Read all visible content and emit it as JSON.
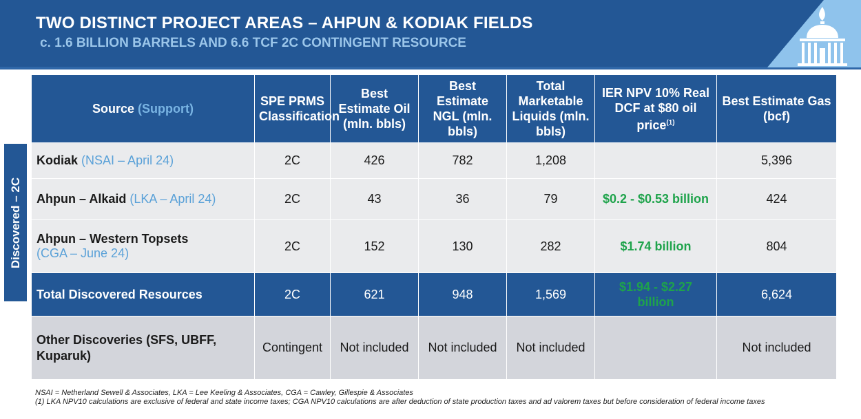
{
  "header": {
    "title": "TWO DISTINCT PROJECT AREAS – AHPUN & KODIAK FIELDS",
    "subtitle": "c. 1.6 BILLION BARRELS AND 6.6 TCF 2C CONTINGENT RESOURCE"
  },
  "side_label": "Discovered – 2C",
  "columns": {
    "source": "Source ",
    "source_sub": "(Support)",
    "spe": "SPE PRMS Classification",
    "oil": "Best Estimate Oil (mln. bbls)",
    "ngl": "Best Estimate NGL (mln. bbls)",
    "liquids": "Total Marketable Liquids (mln. bbls)",
    "npv": "IER NPV 10% Real DCF at $80 oil price",
    "npv_sup": "(1)",
    "gas": "Best Estimate Gas (bcf)"
  },
  "rows": [
    {
      "name": "Kodiak",
      "source": "(NSAI – April 24)",
      "spe": "2C",
      "oil": "426",
      "ngl": "782",
      "liquids": "1,208",
      "npv": "",
      "gas": "5,396"
    },
    {
      "name": "Ahpun – Alkaid",
      "source": "(LKA – April 24)",
      "spe": "2C",
      "oil": "43",
      "ngl": "36",
      "liquids": "79",
      "npv": "$0.2 - $0.53 billion",
      "gas": "424"
    },
    {
      "name": "Ahpun – Western Topsets",
      "source": "(CGA – June 24)",
      "spe": "2C",
      "oil": "152",
      "ngl": "130",
      "liquids": "282",
      "npv": "$1.74 billion",
      "gas": "804"
    }
  ],
  "total": {
    "name": "Total Discovered Resources",
    "spe": "2C",
    "oil": "621",
    "ngl": "948",
    "liquids": "1,569",
    "npv": "$1.94 - $2.27 billion",
    "gas": "6,624"
  },
  "other": {
    "name": "Other Discoveries (SFS, UBFF, Kuparuk)",
    "spe": "Contingent",
    "oil": "Not included",
    "ngl": "Not included",
    "liquids": "Not included",
    "npv": "",
    "gas": "Not included"
  },
  "notes": [
    "NSAI = Netherland Sewell & Associates, LKA = Lee Keeling & Associates, CGA = Cawley, Gillespie & Associates",
    "(1) LKA NPV10 calculations are exclusive of federal and state income taxes; CGA NPV10 calculations are after deduction of state production taxes and ad valorem taxes but before consideration of federal income taxes"
  ],
  "colors": {
    "brand_blue": "#235795",
    "accent_light_blue": "#5aa1d8",
    "npv_green": "#1ea34b",
    "logo_blue": "#8fc3ec"
  },
  "icons": {
    "logo": "capitol-dome-flame-logo"
  }
}
